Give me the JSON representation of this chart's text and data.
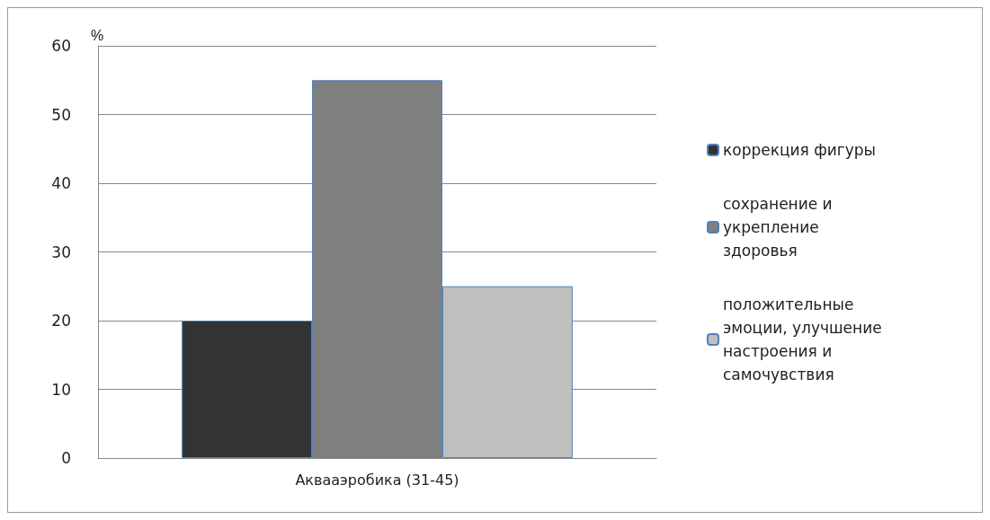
{
  "chart_data": {
    "type": "bar",
    "ylabel": "%",
    "categories": [
      "Аквааэробика (31-45)"
    ],
    "series": [
      {
        "name": "коррекция фигуры",
        "color": "#333333",
        "values": [
          20
        ]
      },
      {
        "name": "сохранение и укрепление здоровья",
        "color": "#7f7f7f",
        "values": [
          55
        ]
      },
      {
        "name": "положительные эмоции, улучшение настроения и самочувствия",
        "color": "#bfbfbf",
        "values": [
          25
        ]
      }
    ],
    "ylim": [
      0,
      60
    ],
    "yticks": [
      0,
      10,
      20,
      30,
      40,
      50,
      60
    ],
    "grid": "y",
    "legend": "right"
  }
}
